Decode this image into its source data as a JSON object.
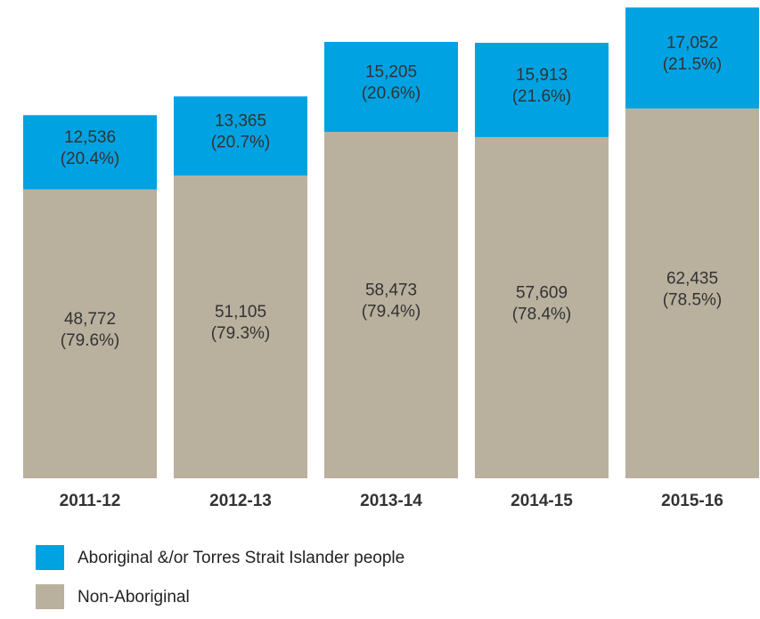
{
  "chart_data": {
    "type": "stacked_bar",
    "categories": [
      "2011-12",
      "2012-13",
      "2013-14",
      "2014-15",
      "2015-16"
    ],
    "series": [
      {
        "name": "Non-Aboriginal",
        "color": "#b9b09e",
        "values": [
          48772,
          51105,
          58473,
          57609,
          62435
        ],
        "value_labels": [
          "48,772",
          "51,105",
          "58,473",
          "57,609",
          "62,435"
        ],
        "share_labels": [
          "(79.6%)",
          "(79.3%)",
          "(79.4%)",
          "(78.4%)",
          "(78.5%)"
        ]
      },
      {
        "name": "Aboriginal &/or Torres Strait Islander people",
        "color": "#00a2e2",
        "values": [
          12536,
          13365,
          15205,
          15913,
          17052
        ],
        "value_labels": [
          "12,536",
          "13,365",
          "15,205",
          "15,913",
          "17,052"
        ],
        "share_labels": [
          "(20.4%)",
          "(20.7%)",
          "(20.6%)",
          "(21.6%)",
          "(21.5%)"
        ]
      }
    ],
    "ylim": [
      0,
      80000
    ],
    "legend": "bottom-left"
  }
}
